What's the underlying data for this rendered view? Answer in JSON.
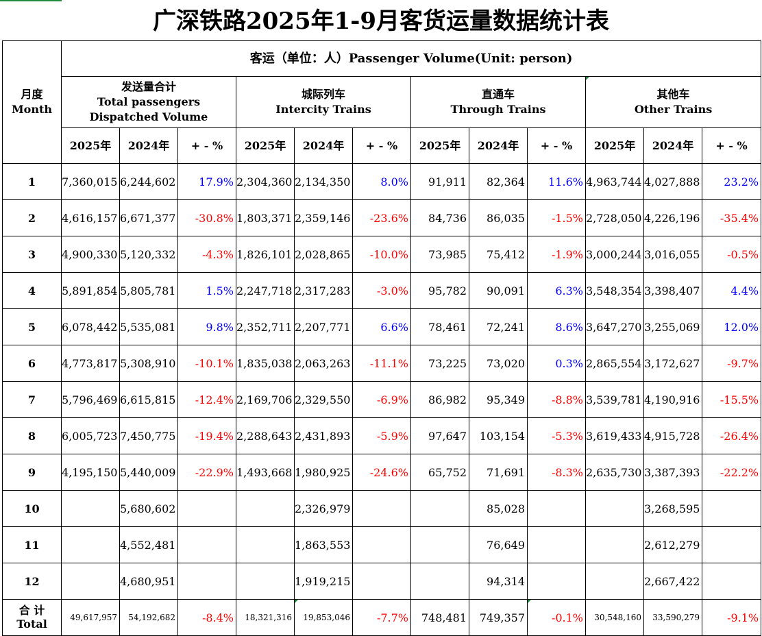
{
  "title": "广深铁路2025年1-9月客货运量数据统计表",
  "header": {
    "month_cn": "月度",
    "month_en": "Month",
    "passenger_group": "客运（单位：人）Passenger Volume(Unit:   person)",
    "groups": [
      {
        "cn": "发送量合计",
        "en": "Total passengers Dispatched Volume"
      },
      {
        "cn": "城际列车",
        "en": "Intercity Trains"
      },
      {
        "cn": "直通车",
        "en": "Through Trains"
      },
      {
        "cn": "其他车",
        "en": "Other Trains"
      }
    ],
    "sub": [
      "2025年",
      "2024年",
      "+ - %"
    ]
  },
  "rows": [
    {
      "month": "1",
      "c": [
        [
          "7,360,015",
          "6,244,602",
          "17.9%"
        ],
        [
          "2,304,360",
          "2,134,350",
          "8.0%"
        ],
        [
          "91,911",
          "82,364",
          "11.6%"
        ],
        [
          "4,963,744",
          "4,027,888",
          "23.2%"
        ]
      ]
    },
    {
      "month": "2",
      "c": [
        [
          "4,616,157",
          "6,671,377",
          "-30.8%"
        ],
        [
          "1,803,371",
          "2,359,146",
          "-23.6%"
        ],
        [
          "84,736",
          "86,035",
          "-1.5%"
        ],
        [
          "2,728,050",
          "4,226,196",
          "-35.4%"
        ]
      ]
    },
    {
      "month": "3",
      "c": [
        [
          "4,900,330",
          "5,120,332",
          "-4.3%"
        ],
        [
          "1,826,101",
          "2,028,865",
          "-10.0%"
        ],
        [
          "73,985",
          "75,412",
          "-1.9%"
        ],
        [
          "3,000,244",
          "3,016,055",
          "-0.5%"
        ]
      ]
    },
    {
      "month": "4",
      "c": [
        [
          "5,891,854",
          "5,805,781",
          "1.5%"
        ],
        [
          "2,247,718",
          "2,317,283",
          "-3.0%"
        ],
        [
          "95,782",
          "90,091",
          "6.3%"
        ],
        [
          "3,548,354",
          "3,398,407",
          "4.4%"
        ]
      ]
    },
    {
      "month": "5",
      "c": [
        [
          "6,078,442",
          "5,535,081",
          "9.8%"
        ],
        [
          "2,352,711",
          "2,207,771",
          "6.6%"
        ],
        [
          "78,461",
          "72,241",
          "8.6%"
        ],
        [
          "3,647,270",
          "3,255,069",
          "12.0%"
        ]
      ]
    },
    {
      "month": "6",
      "c": [
        [
          "4,773,817",
          "5,308,910",
          "-10.1%"
        ],
        [
          "1,835,038",
          "2,063,263",
          "-11.1%"
        ],
        [
          "73,225",
          "73,020",
          "0.3%"
        ],
        [
          "2,865,554",
          "3,172,627",
          "-9.7%"
        ]
      ]
    },
    {
      "month": "7",
      "c": [
        [
          "5,796,469",
          "6,615,815",
          "-12.4%"
        ],
        [
          "2,169,706",
          "2,329,550",
          "-6.9%"
        ],
        [
          "86,982",
          "95,349",
          "-8.8%"
        ],
        [
          "3,539,781",
          "4,190,916",
          "-15.5%"
        ]
      ]
    },
    {
      "month": "8",
      "c": [
        [
          "6,005,723",
          "7,450,775",
          "-19.4%"
        ],
        [
          "2,288,643",
          "2,431,893",
          "-5.9%"
        ],
        [
          "97,647",
          "103,154",
          "-5.3%"
        ],
        [
          "3,619,433",
          "4,915,728",
          "-26.4%"
        ]
      ]
    },
    {
      "month": "9",
      "c": [
        [
          "4,195,150",
          "5,440,009",
          "-22.9%"
        ],
        [
          "1,493,668",
          "1,980,925",
          "-24.6%"
        ],
        [
          "65,752",
          "71,691",
          "-8.3%"
        ],
        [
          "2,635,730",
          "3,387,393",
          "-22.2%"
        ]
      ]
    },
    {
      "month": "10",
      "c": [
        [
          "",
          "5,680,602",
          ""
        ],
        [
          "",
          "2,326,979",
          ""
        ],
        [
          "",
          "85,028",
          ""
        ],
        [
          "",
          "3,268,595",
          ""
        ]
      ]
    },
    {
      "month": "11",
      "c": [
        [
          "",
          "4,552,481",
          ""
        ],
        [
          "",
          "1,863,553",
          ""
        ],
        [
          "",
          "76,649",
          ""
        ],
        [
          "",
          "2,612,279",
          ""
        ]
      ]
    },
    {
      "month": "12",
      "c": [
        [
          "",
          "4,680,951",
          ""
        ],
        [
          "",
          "1,919,215",
          ""
        ],
        [
          "",
          "94,314",
          ""
        ],
        [
          "",
          "2,667,422",
          ""
        ]
      ]
    }
  ],
  "total": {
    "label_cn": "合 计",
    "label_en": "Total",
    "c": [
      [
        "49,617,957",
        "54,192,682",
        "-8.4%"
      ],
      [
        "18,321,316",
        "19,853,046",
        "-7.7%"
      ],
      [
        "748,481",
        "749,357",
        "-0.1%"
      ],
      [
        "30,548,160",
        "33,590,279",
        "-9.1%"
      ]
    ]
  },
  "colors": {
    "positive": "#0000ff",
    "negative": "#ff0000",
    "sheet_marker": "#1e8a3a"
  }
}
